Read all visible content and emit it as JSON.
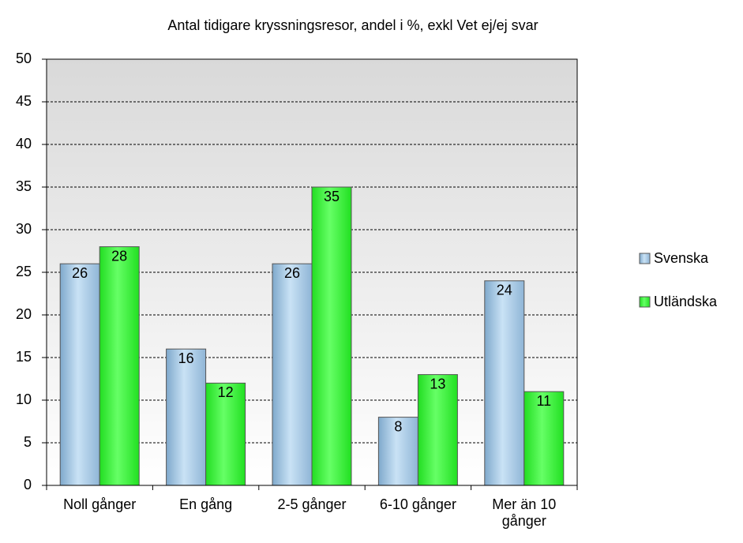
{
  "chart_data": {
    "type": "bar",
    "title": "Antal tidigare kryssningsresor, andel i %, exkl Vet ej/ej svar",
    "categories": [
      "Noll gånger",
      "En gång",
      "2-5 gånger",
      "6-10 gånger",
      "Mer än 10 gånger"
    ],
    "series": [
      {
        "name": "Svenska",
        "color": "#a8cde8",
        "values": [
          26,
          16,
          26,
          8,
          24
        ]
      },
      {
        "name": "Utländska",
        "color": "#33ff33",
        "values": [
          28,
          12,
          35,
          13,
          11
        ]
      }
    ],
    "ylim": [
      0,
      50
    ],
    "yticks": [
      0,
      5,
      10,
      15,
      20,
      25,
      30,
      35,
      40,
      45,
      50
    ],
    "grid": true,
    "legend": "right"
  }
}
